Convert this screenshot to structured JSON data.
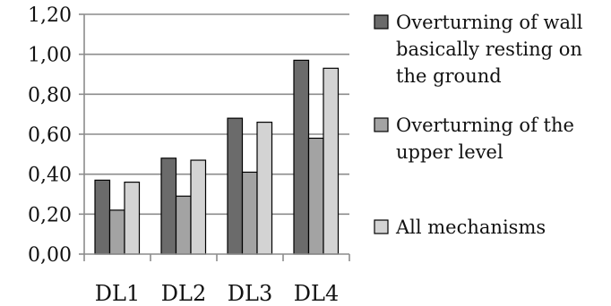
{
  "chart_data": {
    "type": "bar",
    "categories": [
      "DL1",
      "DL2",
      "DL3",
      "DL4"
    ],
    "series": [
      {
        "name": "Overturning of wall basically resting on the ground",
        "legend_lines": [
          "Overturning of wall",
          "basically resting on",
          "the ground"
        ],
        "values": [
          0.37,
          0.48,
          0.68,
          0.97
        ],
        "color": "#6b6b6b"
      },
      {
        "name": "Overturning of the upper level",
        "legend_lines": [
          "Overturning of the",
          "upper level"
        ],
        "values": [
          0.22,
          0.29,
          0.41,
          0.58
        ],
        "color": "#a3a3a3"
      },
      {
        "name": "All mechanisms",
        "legend_lines": [
          "All mechanisms"
        ],
        "values": [
          0.36,
          0.47,
          0.66,
          0.93
        ],
        "color": "#d3d3d3"
      }
    ],
    "y_ticks": [
      {
        "value": 0.0,
        "label": "0,00"
      },
      {
        "value": 0.2,
        "label": "0,20"
      },
      {
        "value": 0.4,
        "label": "0,40"
      },
      {
        "value": 0.6,
        "label": "0,60"
      },
      {
        "value": 0.8,
        "label": "0,80"
      },
      {
        "value": 1.0,
        "label": "1,00"
      },
      {
        "value": 1.2,
        "label": "1,20"
      }
    ],
    "ylim": [
      0,
      1.2
    ],
    "grid": true,
    "legend_position": "right",
    "title": "",
    "xlabel": "",
    "ylabel": ""
  }
}
